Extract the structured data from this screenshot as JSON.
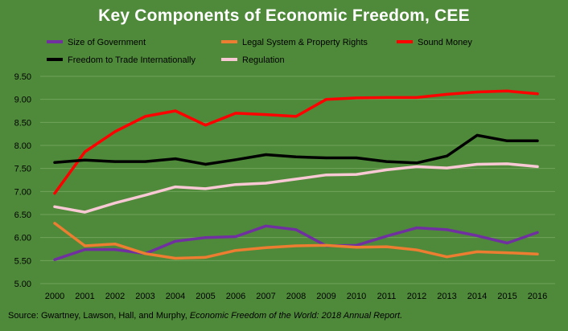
{
  "chart_data": {
    "type": "line",
    "title": "Key Components of Economic Freedom, CEE",
    "x": [
      "2000",
      "2001",
      "2002",
      "2003",
      "2004",
      "2005",
      "2006",
      "2007",
      "2008",
      "2009",
      "2010",
      "2011",
      "2012",
      "2013",
      "2014",
      "2015",
      "2016"
    ],
    "ylim": [
      5.0,
      9.5
    ],
    "yticks": [
      "5.00",
      "5.50",
      "6.00",
      "6.50",
      "7.00",
      "7.50",
      "8.00",
      "8.50",
      "9.00",
      "9.50"
    ],
    "grid": true,
    "legend_placement": "top",
    "series": [
      {
        "name": "Size of Government",
        "color": "#7030a0",
        "values": [
          5.52,
          5.74,
          5.74,
          5.65,
          5.92,
          6.0,
          6.02,
          6.25,
          6.17,
          5.82,
          5.83,
          6.03,
          6.21,
          6.17,
          6.04,
          5.88,
          6.11
        ]
      },
      {
        "name": "Legal System & Property Rights",
        "color": "#ed7d31",
        "values": [
          6.31,
          5.82,
          5.86,
          5.65,
          5.55,
          5.57,
          5.72,
          5.78,
          5.82,
          5.83,
          5.79,
          5.8,
          5.73,
          5.58,
          5.69,
          5.67,
          5.64
        ]
      },
      {
        "name": "Sound Money",
        "color": "#ff0000",
        "values": [
          6.96,
          7.86,
          8.3,
          8.63,
          8.75,
          8.44,
          8.7,
          8.67,
          8.63,
          9.0,
          9.03,
          9.04,
          9.04,
          9.11,
          9.16,
          9.18,
          9.12
        ]
      },
      {
        "name": "Freedom to Trade Internationally",
        "color": "#000000",
        "values": [
          7.63,
          7.68,
          7.65,
          7.65,
          7.71,
          7.59,
          7.69,
          7.8,
          7.75,
          7.73,
          7.73,
          7.65,
          7.62,
          7.77,
          8.22,
          8.1,
          8.1
        ]
      },
      {
        "name": "Regulation",
        "color": "#f8c8d4",
        "values": [
          6.67,
          6.55,
          6.75,
          6.92,
          7.1,
          7.06,
          7.15,
          7.18,
          7.27,
          7.36,
          7.37,
          7.47,
          7.54,
          7.51,
          7.59,
          7.6,
          7.54
        ]
      }
    ]
  },
  "source": {
    "prefix": "Source: Gwartney, Lawson, Hall, and Murphy, ",
    "italic": "Economic Freedom of the World: 2018 Annual Report."
  }
}
